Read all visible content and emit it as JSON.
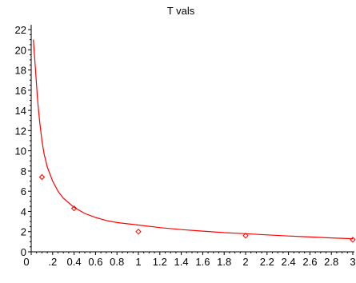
{
  "chart_data": {
    "type": "scatter",
    "title": "T vals",
    "xlabel": "",
    "ylabel": "",
    "xlim": [
      0,
      3
    ],
    "ylim": [
      0,
      22
    ],
    "x_ticks": [
      0,
      0.2,
      0.4,
      0.6,
      0.8,
      1,
      1.2,
      1.4,
      1.6,
      1.8,
      2,
      2.2,
      2.4,
      2.6,
      2.8,
      3
    ],
    "x_tick_labels": [
      "0",
      ".2",
      "0.4",
      "0.6",
      "0.8",
      "1",
      "1.2",
      "1.4",
      "1.6",
      "1.8",
      "2",
      "2.2",
      "2.4",
      "2.6",
      "2.8",
      "3"
    ],
    "y_ticks": [
      0,
      2,
      4,
      6,
      8,
      10,
      12,
      14,
      16,
      18,
      20,
      22
    ],
    "y_tick_labels": [
      "0",
      "2",
      "4",
      "6",
      "8",
      "10",
      "12",
      "14",
      "16",
      "18",
      "20",
      "22"
    ],
    "grid": false,
    "color": "#ff0000",
    "points": [
      {
        "x": 0.1,
        "y": 7.4
      },
      {
        "x": 0.4,
        "y": 4.3
      },
      {
        "x": 1.0,
        "y": 2.0
      },
      {
        "x": 2.0,
        "y": 1.6
      },
      {
        "x": 3.0,
        "y": 1.2
      }
    ],
    "fit_curve": [
      {
        "x": 0.02,
        "y": 21.0
      },
      {
        "x": 0.04,
        "y": 18.0
      },
      {
        "x": 0.06,
        "y": 15.0
      },
      {
        "x": 0.08,
        "y": 12.8
      },
      {
        "x": 0.1,
        "y": 11.0
      },
      {
        "x": 0.12,
        "y": 9.7
      },
      {
        "x": 0.15,
        "y": 8.4
      },
      {
        "x": 0.2,
        "y": 7.0
      },
      {
        "x": 0.25,
        "y": 6.0
      },
      {
        "x": 0.3,
        "y": 5.3
      },
      {
        "x": 0.4,
        "y": 4.4
      },
      {
        "x": 0.5,
        "y": 3.8
      },
      {
        "x": 0.6,
        "y": 3.4
      },
      {
        "x": 0.7,
        "y": 3.1
      },
      {
        "x": 0.8,
        "y": 2.9
      },
      {
        "x": 1.0,
        "y": 2.65
      },
      {
        "x": 1.2,
        "y": 2.4
      },
      {
        "x": 1.4,
        "y": 2.2
      },
      {
        "x": 1.6,
        "y": 2.05
      },
      {
        "x": 1.8,
        "y": 1.9
      },
      {
        "x": 2.0,
        "y": 1.8
      },
      {
        "x": 2.2,
        "y": 1.68
      },
      {
        "x": 2.4,
        "y": 1.57
      },
      {
        "x": 2.6,
        "y": 1.47
      },
      {
        "x": 2.8,
        "y": 1.38
      },
      {
        "x": 3.0,
        "y": 1.3
      }
    ]
  }
}
